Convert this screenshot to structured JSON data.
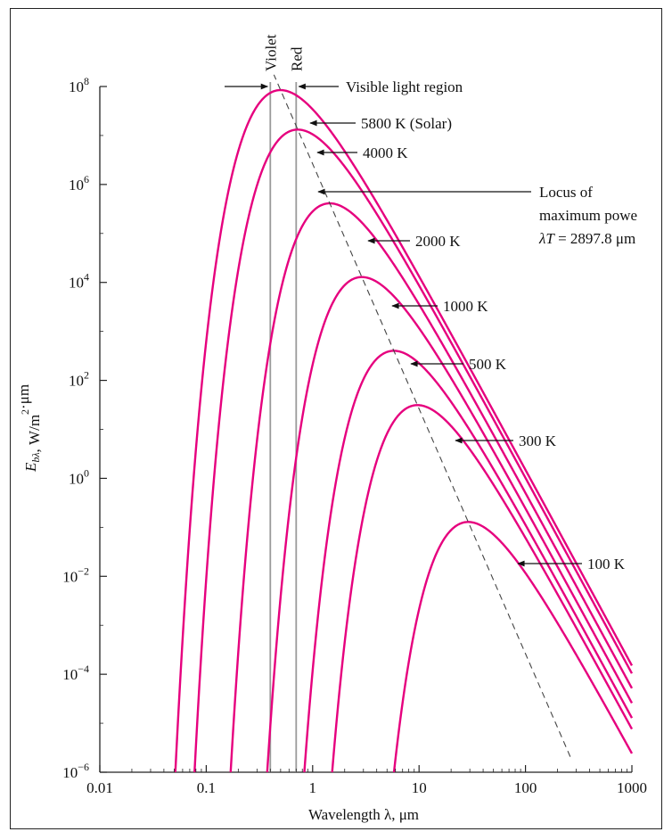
{
  "chart_data": {
    "type": "line",
    "title": "",
    "xlabel": "Wavelength λ, μm",
    "ylabel": "E_bλ, W/m²·μm",
    "x_scale": "log",
    "y_scale": "log",
    "xlim": [
      0.01,
      1000
    ],
    "ylim": [
      1e-06,
      100000000.0
    ],
    "x_ticks": [
      {
        "value": 0.01,
        "label": "0.01"
      },
      {
        "value": 0.1,
        "label": "0.1"
      },
      {
        "value": 1,
        "label": "1"
      },
      {
        "value": 10,
        "label": "10"
      },
      {
        "value": 100,
        "label": "100"
      },
      {
        "value": 1000,
        "label": "1000"
      }
    ],
    "y_ticks": [
      {
        "value": 100000000.0,
        "base": "10",
        "exp": "8"
      },
      {
        "value": 1000000.0,
        "base": "10",
        "exp": "6"
      },
      {
        "value": 10000.0,
        "base": "10",
        "exp": "4"
      },
      {
        "value": 100.0,
        "base": "10",
        "exp": "2"
      },
      {
        "value": 1.0,
        "base": "10",
        "exp": "0"
      },
      {
        "value": 0.01,
        "base": "10",
        "exp": "−2"
      },
      {
        "value": 0.0001,
        "base": "10",
        "exp": "−4"
      },
      {
        "value": 1e-06,
        "base": "10",
        "exp": "−6"
      }
    ],
    "grid": false,
    "legend": "none",
    "series": [
      {
        "name": "5800 K (Solar)",
        "temperature": 5800
      },
      {
        "name": "4000 K",
        "temperature": 4000
      },
      {
        "name": "2000 K",
        "temperature": 2000
      },
      {
        "name": "1000 K",
        "temperature": 1000
      },
      {
        "name": "500 K",
        "temperature": 500
      },
      {
        "name": "300 K",
        "temperature": 300
      },
      {
        "name": "100 K",
        "temperature": 100
      }
    ],
    "visible_band": {
      "violet_um": 0.4,
      "red_um": 0.7,
      "violet_label": "Violet",
      "red_label": "Red",
      "label": "Visible light region"
    },
    "locus": {
      "label_lines": [
        "Locus of",
        "maximum powe",
        "λT = 2897.8 μm"
      ]
    },
    "colors": {
      "curve": "#e6007e",
      "locus": "#444444",
      "band": "#9a9a9a",
      "axis": "#222222"
    }
  }
}
